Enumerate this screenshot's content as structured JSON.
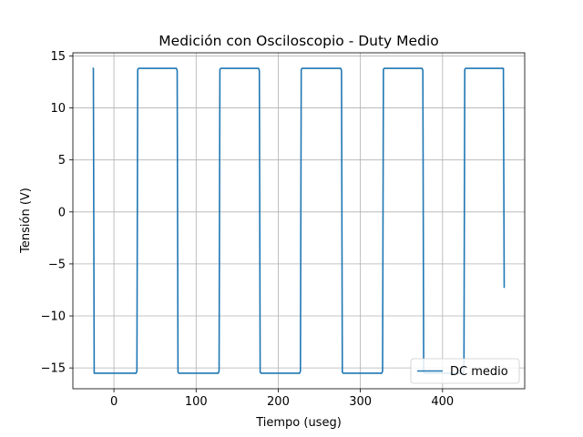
{
  "chart_data": {
    "type": "line",
    "title": "Medición con Osciloscopio - Duty Medio",
    "xlabel": "Tiempo (useg)",
    "ylabel": "Tensión (V)",
    "xlim": [
      -50,
      500
    ],
    "ylim": [
      -17,
      15.3
    ],
    "xticks": [
      0,
      100,
      200,
      300,
      400
    ],
    "yticks": [
      -15,
      -10,
      -5,
      0,
      5,
      10,
      15
    ],
    "xtick_labels": [
      "0",
      "100",
      "200",
      "300",
      "400"
    ],
    "ytick_labels": [
      "−15",
      "−10",
      "−5",
      "0",
      "5",
      "10",
      "15"
    ],
    "grid": true,
    "legend_position": "lower-right",
    "color": "#1f77b4",
    "series": [
      {
        "name": "DC medio",
        "x": [
          -26,
          -25,
          -24,
          -23,
          27,
          28,
          29,
          30,
          76,
          77,
          78,
          79,
          127,
          128,
          129,
          130,
          176,
          177,
          178,
          179,
          226,
          227,
          228,
          229,
          276,
          277,
          278,
          279,
          326,
          327,
          328,
          329,
          375,
          376,
          377,
          378,
          425,
          426,
          427,
          428,
          474,
          475
        ],
        "y": [
          13.8,
          13.8,
          -15.5,
          -15.5,
          -15.5,
          -15.3,
          13.7,
          13.8,
          13.8,
          13.6,
          -15.4,
          -15.5,
          -15.5,
          -15.3,
          13.7,
          13.8,
          13.8,
          13.6,
          -15.4,
          -15.5,
          -15.5,
          -15.3,
          13.7,
          13.8,
          13.8,
          13.6,
          -15.4,
          -15.5,
          -15.5,
          -15.3,
          13.7,
          13.8,
          13.8,
          13.6,
          -15.4,
          -15.5,
          -15.5,
          -15.3,
          13.7,
          13.8,
          13.8,
          -7.3
        ]
      }
    ]
  }
}
